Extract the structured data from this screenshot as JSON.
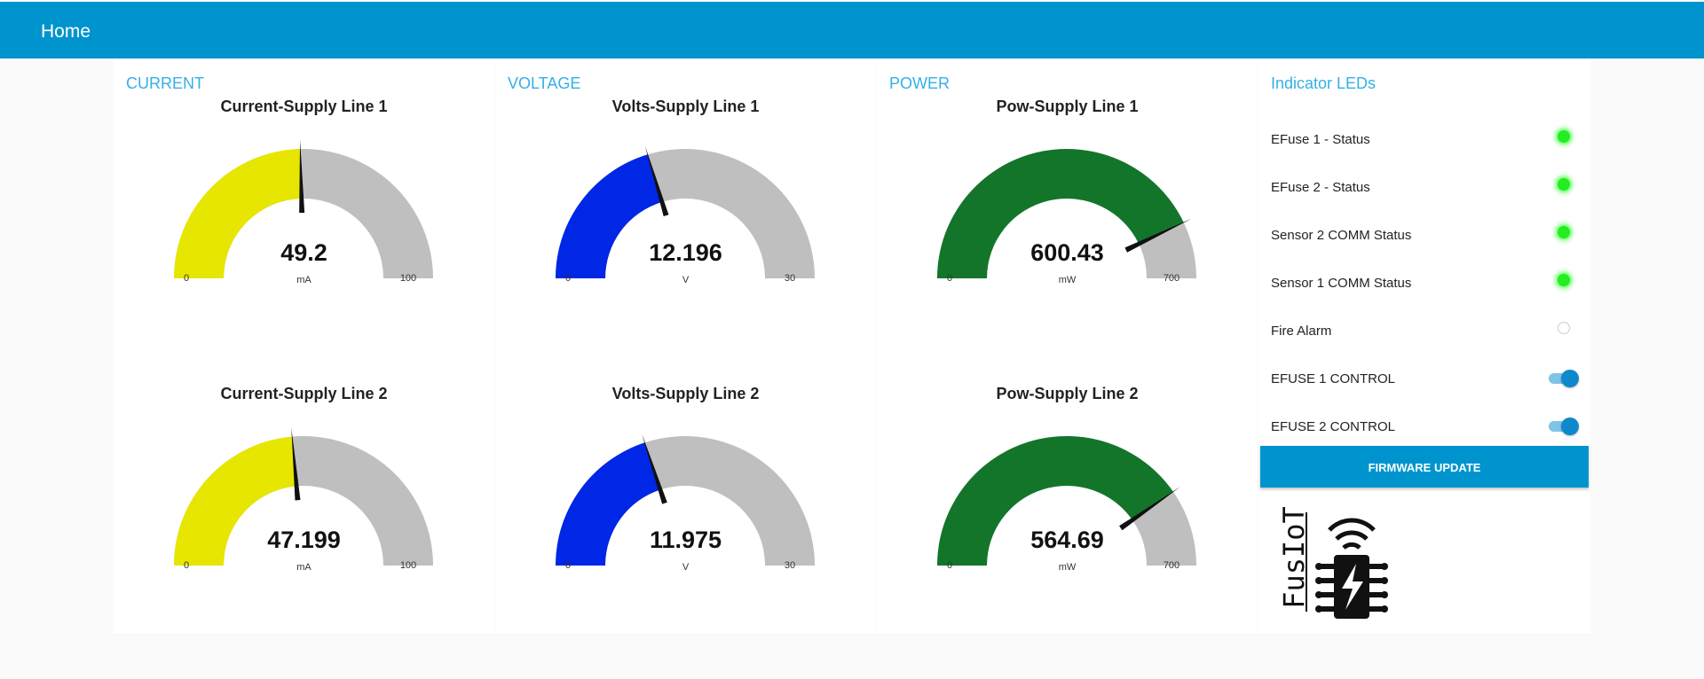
{
  "header": {
    "title": "Home"
  },
  "groups": {
    "current": {
      "title": "CURRENT",
      "gauges": [
        {
          "label": "Current-Supply Line 1",
          "value": 49.2,
          "display": "49.2",
          "unit": "mA",
          "min": 0,
          "max": 100,
          "min_label": "0",
          "max_label": "100",
          "color": "#e6e600"
        },
        {
          "label": "Current-Supply Line 2",
          "value": 47.199,
          "display": "47.199",
          "unit": "mA",
          "min": 0,
          "max": 100,
          "min_label": "0",
          "max_label": "100",
          "color": "#e6e600"
        }
      ]
    },
    "voltage": {
      "title": "VOLTAGE",
      "gauges": [
        {
          "label": "Volts-Supply Line 1",
          "value": 12.196,
          "display": "12.196",
          "unit": "V",
          "min": 0,
          "max": 30,
          "min_label": "0",
          "max_label": "30",
          "color": "#0026e6"
        },
        {
          "label": "Volts-Supply Line 2",
          "value": 11.975,
          "display": "11.975",
          "unit": "V",
          "min": 0,
          "max": 30,
          "min_label": "0",
          "max_label": "30",
          "color": "#0026e6"
        }
      ]
    },
    "power": {
      "title": "POWER",
      "gauges": [
        {
          "label": "Pow-Supply Line 1",
          "value": 600.43,
          "display": "600.43",
          "unit": "mW",
          "min": 0,
          "max": 700,
          "min_label": "0",
          "max_label": "700",
          "color": "#13752a"
        },
        {
          "label": "Pow-Supply Line 2",
          "value": 564.69,
          "display": "564.69",
          "unit": "mW",
          "min": 0,
          "max": 700,
          "min_label": "0",
          "max_label": "700",
          "color": "#13752a"
        }
      ]
    },
    "indicators": {
      "title": "Indicator LEDs",
      "leds": [
        {
          "label": "EFuse 1 - Status",
          "state": "on"
        },
        {
          "label": "EFuse 2 - Status",
          "state": "on"
        },
        {
          "label": "Sensor 2 COMM Status",
          "state": "on"
        },
        {
          "label": "Sensor 1 COMM Status",
          "state": "on"
        },
        {
          "label": "Fire Alarm",
          "state": "off"
        }
      ],
      "toggles": [
        {
          "label": "EFUSE 1 CONTROL",
          "on": true
        },
        {
          "label": "EFUSE 2 CONTROL",
          "on": true
        }
      ],
      "firmware_button": "FIRMWARE UPDATE",
      "logo_text": "FusIoT"
    }
  },
  "colors": {
    "header_bg": "#0094ce",
    "group_title": "#33b0e8",
    "gauge_track": "#bfbfbf",
    "needle": "#111111"
  }
}
